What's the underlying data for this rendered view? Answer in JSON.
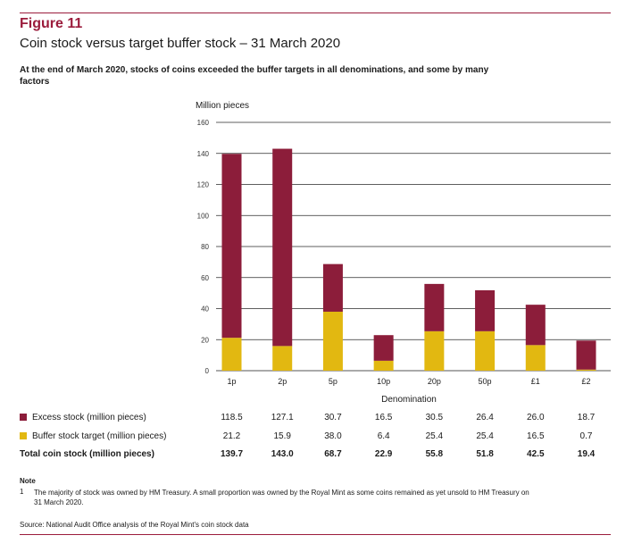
{
  "figure_label": "Figure 11",
  "figure_title": "Coin stock versus target buffer stock – 31 March 2020",
  "subtitle": "At the end of March 2020, stocks of coins exceeded the buffer targets in all denominations, and some by many factors",
  "colors": {
    "excess": "#8c1d3a",
    "buffer": "#e2b811",
    "rule": "#9b1c3c"
  },
  "chart_data": {
    "type": "bar",
    "stacked": true,
    "ylabel": "Million pieces",
    "xlabel": "Denomination",
    "ylim": [
      0,
      160
    ],
    "yticks": [
      0,
      20,
      40,
      60,
      80,
      100,
      120,
      140,
      160
    ],
    "grid": true,
    "categories": [
      "1p",
      "2p",
      "5p",
      "10p",
      "20p",
      "50p",
      "£1",
      "£2"
    ],
    "series": [
      {
        "name": "Buffer stock target (million pieces)",
        "values": [
          21.2,
          15.9,
          38.0,
          6.4,
          25.4,
          25.4,
          16.5,
          0.7
        ]
      },
      {
        "name": "Excess stock (million pieces)",
        "values": [
          118.5,
          127.1,
          30.7,
          16.5,
          30.5,
          26.4,
          26.0,
          18.7
        ]
      }
    ]
  },
  "table": {
    "rows": [
      {
        "label": "Excess stock (million pieces)",
        "swatch": "excess",
        "values": [
          "118.5",
          "127.1",
          "30.7",
          "16.5",
          "30.5",
          "26.4",
          "26.0",
          "18.7"
        ]
      },
      {
        "label": "Buffer stock target (million pieces)",
        "swatch": "buffer",
        "values": [
          "21.2",
          "15.9",
          "38.0",
          "6.4",
          "25.4",
          "25.4",
          "16.5",
          "0.7"
        ]
      },
      {
        "label": "Total coin stock (million pieces)",
        "swatch": "",
        "values": [
          "139.7",
          "143.0",
          "68.7",
          "22.9",
          "55.8",
          "51.8",
          "42.5",
          "19.4"
        ]
      }
    ]
  },
  "note": {
    "heading": "Note",
    "number": "1",
    "text": "The majority of stock was owned by HM Treasury. A small proportion was owned by the Royal Mint as some coins remained as yet unsold to HM Treasury on 31 March 2020."
  },
  "source": "Source: National Audit Office analysis of the Royal Mint's coin stock data"
}
